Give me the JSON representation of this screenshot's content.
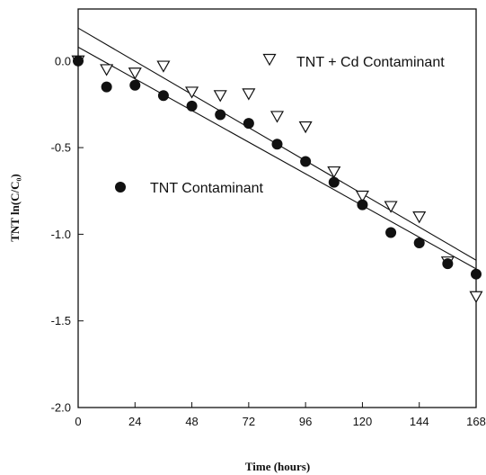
{
  "chart_data": {
    "type": "scatter",
    "xlabel": "Time (hours)",
    "ylabel": "TNT ln(C/C₀)",
    "xlim": [
      0,
      168
    ],
    "ylim": [
      -2.0,
      0.3
    ],
    "xticks": [
      0,
      24,
      48,
      72,
      96,
      120,
      144,
      168
    ],
    "xtick_labels": [
      "0",
      "24",
      "48",
      "72",
      "96",
      "120",
      "144",
      "168"
    ],
    "yticks": [
      0.0,
      -0.5,
      -1.0,
      -1.5,
      -2.0
    ],
    "ytick_labels": [
      "0.0",
      "-0.5",
      "-1.0",
      "-1.5",
      "-2.0"
    ],
    "grid": false,
    "series": [
      {
        "name": "TNT + Cd Contaminant",
        "marker": "open-triangle-down",
        "color": "#111111",
        "x": [
          0,
          12,
          24,
          36,
          48,
          60,
          72,
          84,
          96,
          108,
          120,
          132,
          144,
          156,
          168
        ],
        "y": [
          0.0,
          -0.05,
          -0.07,
          -0.03,
          -0.18,
          -0.2,
          -0.19,
          -0.32,
          -0.38,
          -0.64,
          -0.78,
          -0.84,
          -0.9,
          -1.16,
          -1.36
        ]
      },
      {
        "name": "TNT Contaminant",
        "marker": "filled-circle",
        "color": "#111111",
        "x": [
          0,
          12,
          24,
          36,
          48,
          60,
          72,
          84,
          96,
          108,
          120,
          132,
          144,
          156,
          168
        ],
        "y": [
          0.0,
          -0.15,
          -0.14,
          -0.2,
          -0.26,
          -0.31,
          -0.36,
          -0.48,
          -0.58,
          -0.7,
          -0.83,
          -0.99,
          -1.05,
          -1.17,
          -1.23
        ]
      }
    ],
    "fit_lines": [
      {
        "series": "TNT + Cd Contaminant",
        "x": [
          0,
          168
        ],
        "y": [
          0.19,
          -1.15
        ]
      },
      {
        "series": "TNT Contaminant",
        "x": [
          0,
          168
        ],
        "y": [
          0.08,
          -1.2
        ]
      }
    ],
    "legend": [
      {
        "label": "TNT + Cd Contaminant",
        "marker": "open-triangle-down",
        "placement": "top-right"
      },
      {
        "label": "TNT Contaminant",
        "marker": "filled-circle",
        "placement": "left-middle"
      }
    ]
  }
}
